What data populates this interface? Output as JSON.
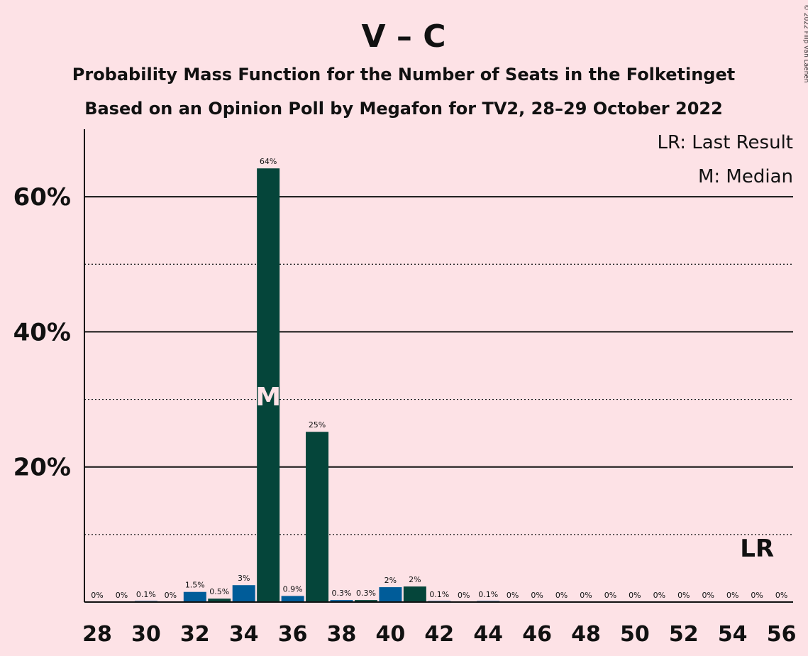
{
  "title": "V – C",
  "subtitle1": "Probability Mass Function for the Number of Seats in the Folketinget",
  "subtitle2": "Based on an Opinion Poll by Megafon for TV2, 28–29 October 2022",
  "copyright": "© 2022 Filip van Laenen",
  "legend": {
    "lr": "LR: Last Result",
    "median": "M: Median"
  },
  "markers": {
    "median_label": "M",
    "median_seat": 35,
    "lr_label": "LR",
    "lr_seat": 55
  },
  "colors": {
    "background": "#fde2e6",
    "party_v": "#00583c",
    "party_c": "#005c99",
    "dark_bar": "#05453a"
  },
  "chart_data": {
    "type": "bar",
    "title": "V – C",
    "xlabel": "",
    "ylabel": "",
    "ylim": [
      0,
      70
    ],
    "x": [
      28,
      29,
      30,
      31,
      32,
      33,
      34,
      35,
      36,
      37,
      38,
      39,
      40,
      41,
      42,
      43,
      44,
      45,
      46,
      47,
      48,
      49,
      50,
      51,
      52,
      53,
      54,
      55,
      56
    ],
    "values": [
      0,
      0,
      0.1,
      0,
      1.5,
      0.5,
      2.5,
      64.2,
      0.9,
      25.2,
      0.3,
      0.3,
      2.2,
      2.3,
      0.1,
      0,
      0.1,
      0,
      0,
      0,
      0,
      0,
      0,
      0,
      0,
      0,
      0,
      0,
      0
    ],
    "labels": [
      "0%",
      "0%",
      "0.1%",
      "0%",
      "1.5%",
      "0.5%",
      "3%",
      "64%",
      "0.9%",
      "25%",
      "0.3%",
      "0.3%",
      "2%",
      "2%",
      "0.1%",
      "0%",
      "0.1%",
      "0%",
      "0%",
      "0%",
      "0%",
      "0%",
      "0%",
      "0%",
      "0%",
      "0%",
      "0%",
      "0%",
      "0%"
    ],
    "bar_colors": [
      "c",
      "c",
      "c",
      "c",
      "c",
      "v",
      "c",
      "v",
      "c",
      "v",
      "c",
      "v",
      "c",
      "v",
      "c",
      "v",
      "c",
      "v",
      "c",
      "v",
      "c",
      "v",
      "c",
      "v",
      "c",
      "v",
      "c",
      "v",
      "c"
    ],
    "xticks": [
      "28",
      "30",
      "32",
      "34",
      "36",
      "38",
      "40",
      "42",
      "44",
      "46",
      "48",
      "50",
      "52",
      "54",
      "56"
    ],
    "yticks": [
      "20%",
      "40%",
      "60%"
    ],
    "grid": true
  }
}
